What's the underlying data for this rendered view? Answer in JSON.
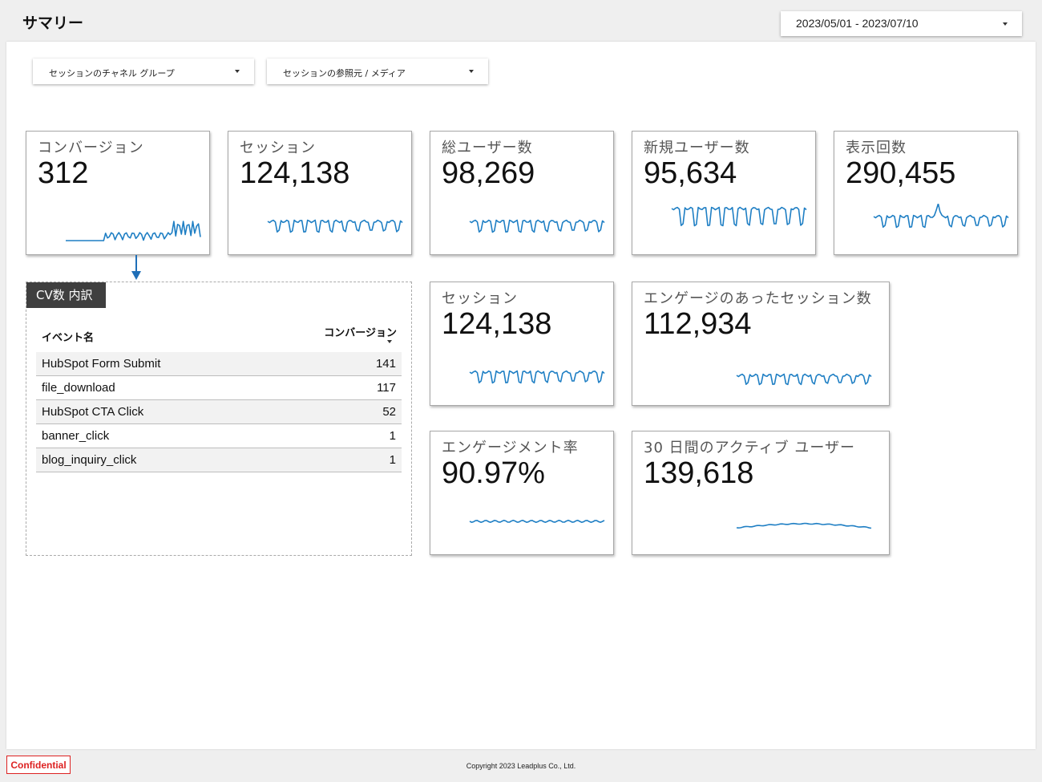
{
  "header": {
    "title": "サマリー",
    "date_range": "2023/05/01 - 2023/07/10"
  },
  "filters": [
    {
      "label": "セッションのチャネル グループ"
    },
    {
      "label": "セッションの参照元 / メディア"
    }
  ],
  "scorecards": [
    {
      "label": "コンバージョン",
      "value": "312"
    },
    {
      "label": "セッション",
      "value": "124,138"
    },
    {
      "label": "総ユーザー数",
      "value": "98,269"
    },
    {
      "label": "新規ユーザー数",
      "value": "95,634"
    },
    {
      "label": "表示回数",
      "value": "290,455"
    },
    {
      "label": "セッション",
      "value": "124,138"
    },
    {
      "label": "エンゲージのあったセッション数",
      "value": "112,934"
    },
    {
      "label": "エンゲージメント率",
      "value": "90.97%"
    },
    {
      "label": "30 日間のアクティブ ユーザー",
      "value": "139,618"
    }
  ],
  "cv_breakdown": {
    "badge": "CV数 内訳",
    "col_event": "イベント名",
    "col_conversions": "コンバージョン",
    "rows": [
      {
        "event": "HubSpot Form Submit",
        "conversions": "141"
      },
      {
        "event": "file_download",
        "conversions": "117"
      },
      {
        "event": "HubSpot CTA Click",
        "conversions": "52"
      },
      {
        "event": "banner_click",
        "conversions": "1"
      },
      {
        "event": "blog_inquiry_click",
        "conversions": "1"
      }
    ]
  },
  "footer": {
    "confidential": "Confidential",
    "copyright": "Copyright 2023 Leadplus Co., Ltd."
  },
  "colors": {
    "sparkline": "#1f7fc4",
    "arrow": "#1f6fb8",
    "badge_bg": "#3f3f3f",
    "confidential": "#dd2222"
  }
}
